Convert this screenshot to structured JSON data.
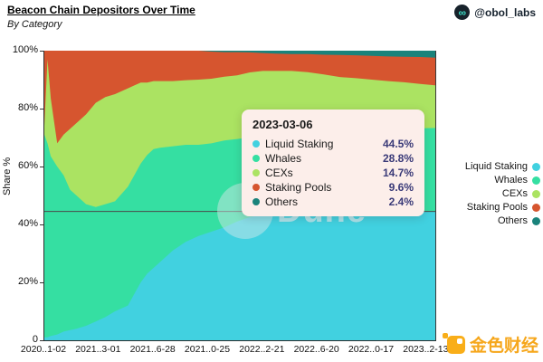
{
  "header": {
    "title": "Beacon Chain Depositors Over Time",
    "subtitle": "By Category",
    "byline": "@obol_labs",
    "byline_icon": "infinity-icon",
    "byline_icon_glyph": "∞"
  },
  "axes": {
    "y": {
      "label": "Share %",
      "ticks": [
        "0",
        "20%",
        "40%",
        "60%",
        "80%",
        "100%"
      ],
      "range": [
        0,
        100
      ]
    },
    "x": {
      "tick_labels": [
        "2020..1-02",
        "2021..3-01",
        "2021..6-28",
        "2021..0-25",
        "2022..2-21",
        "2022..6-20",
        "2022..0-17",
        "2023..2-13"
      ],
      "tick_weeks": [
        0,
        17,
        34,
        51,
        68,
        85,
        102,
        119
      ]
    }
  },
  "legend": {
    "position": "right",
    "items": [
      {
        "label": "Liquid Staking",
        "color": "#41d1e0"
      },
      {
        "label": "Whales",
        "color": "#35dfa2"
      },
      {
        "label": "CEXs",
        "color": "#abe362"
      },
      {
        "label": "Staking Pools",
        "color": "#d6552f"
      },
      {
        "label": "Others",
        "color": "#1a837b"
      }
    ]
  },
  "tooltip": {
    "date": "2023-03-06",
    "rows": [
      {
        "label": "Liquid Staking",
        "value": "44.5%",
        "color": "#41d1e0"
      },
      {
        "label": "Whales",
        "value": "28.8%",
        "color": "#35dfa2"
      },
      {
        "label": "CEXs",
        "value": "14.7%",
        "color": "#abe362"
      },
      {
        "label": "Staking Pools",
        "value": "9.6%",
        "color": "#d6552f"
      },
      {
        "label": "Others",
        "value": "2.4%",
        "color": "#1a837b"
      }
    ],
    "crosshair_percent": 44.5,
    "bg_color": "#fceeea",
    "value_color": "#3a3a78"
  },
  "watermarks": {
    "dune": "Dune",
    "site": "金色财经"
  },
  "chart_data": {
    "type": "area",
    "stacked": true,
    "normalized_to_100": true,
    "title": "Beacon Chain Depositors Over Time",
    "subtitle": "By Category",
    "xlabel": "",
    "ylabel": "Share %",
    "ylim": [
      0,
      100
    ],
    "grid": false,
    "legend_position": "right",
    "total_weeks": 122,
    "x_weeks": [
      0,
      1,
      2,
      4,
      6,
      8,
      10,
      13,
      16,
      19,
      22,
      26,
      28,
      30,
      32,
      34,
      36,
      40,
      44,
      48,
      52,
      56,
      60,
      64,
      68,
      72,
      77,
      82,
      87,
      92,
      97,
      102,
      107,
      112,
      117,
      122
    ],
    "x_dates": [
      "2020-11-02",
      "2020-11-09",
      "2020-11-16",
      "2020-11-30",
      "2020-12-14",
      "2020-12-28",
      "2021-01-11",
      "2021-02-01",
      "2021-02-22",
      "2021-03-15",
      "2021-04-05",
      "2021-05-03",
      "2021-05-17",
      "2021-05-31",
      "2021-06-14",
      "2021-06-28",
      "2021-07-12",
      "2021-08-09",
      "2021-09-06",
      "2021-10-04",
      "2021-11-01",
      "2021-11-29",
      "2021-12-27",
      "2022-01-24",
      "2022-02-21",
      "2022-03-21",
      "2022-04-25",
      "2022-05-30",
      "2022-07-04",
      "2022-08-08",
      "2022-09-12",
      "2022-10-17",
      "2022-11-21",
      "2022-12-26",
      "2023-01-30",
      "2023-03-06"
    ],
    "series": [
      {
        "name": "Liquid Staking",
        "color": "#41d1e0",
        "values": [
          1,
          1,
          1.5,
          2,
          3,
          3.5,
          4,
          5,
          6.5,
          8,
          10,
          12,
          16,
          20,
          23,
          25,
          27,
          31,
          34,
          36,
          37.5,
          39,
          41,
          42.5,
          43.5,
          44,
          44.3,
          44.4,
          44.5,
          44.5,
          44.5,
          44.5,
          44.5,
          44.5,
          44.5,
          44.5
        ]
      },
      {
        "name": "Whales",
        "color": "#35dfa2",
        "values": [
          70,
          67,
          62,
          58,
          54,
          48.5,
          46,
          42,
          39.5,
          39,
          38,
          41,
          41,
          41,
          41,
          41,
          39.5,
          36,
          33.5,
          31.5,
          30.5,
          30,
          28.5,
          27.5,
          27,
          27,
          27.2,
          27.6,
          27.8,
          28,
          28.2,
          28.4,
          28.5,
          28.6,
          28.7,
          28.8
        ]
      },
      {
        "name": "CEXs",
        "color": "#abe362",
        "values": [
          3,
          29,
          20,
          8,
          14,
          21,
          25,
          31,
          36,
          37,
          37,
          34,
          31,
          28,
          25,
          23.5,
          23,
          22.5,
          22.3,
          22.5,
          22.3,
          22,
          22,
          22.4,
          22.5,
          22,
          21.5,
          20.6,
          19.5,
          18.4,
          17.8,
          17.1,
          16.5,
          16,
          15.3,
          14.7
        ]
      },
      {
        "name": "Staking Pools",
        "color": "#d6552f",
        "values": [
          26,
          3,
          16.5,
          32,
          29,
          27,
          25,
          22,
          18,
          16,
          15,
          13,
          12,
          11,
          11,
          10.5,
          10.5,
          10.5,
          10.2,
          10,
          9.4,
          8.5,
          8,
          6.9,
          6.2,
          6,
          5.8,
          6.2,
          6.8,
          7.6,
          7.9,
          8.2,
          8.5,
          8.8,
          9.3,
          9.6
        ]
      },
      {
        "name": "Others",
        "color": "#1a837b",
        "values": [
          0,
          0,
          0,
          0,
          0,
          0,
          0,
          0,
          0,
          0,
          0,
          0,
          0,
          0,
          0,
          0,
          0,
          0,
          0,
          0,
          0.3,
          0.5,
          0.5,
          0.6,
          0.8,
          1,
          1.2,
          1.2,
          1.4,
          1.5,
          1.6,
          1.8,
          2,
          2.1,
          2.2,
          2.4
        ]
      }
    ],
    "hovered_point": {
      "date": "2023-03-06",
      "values": {
        "Liquid Staking": 44.5,
        "Whales": 28.8,
        "CEXs": 14.7,
        "Staking Pools": 9.6,
        "Others": 2.4
      }
    }
  }
}
